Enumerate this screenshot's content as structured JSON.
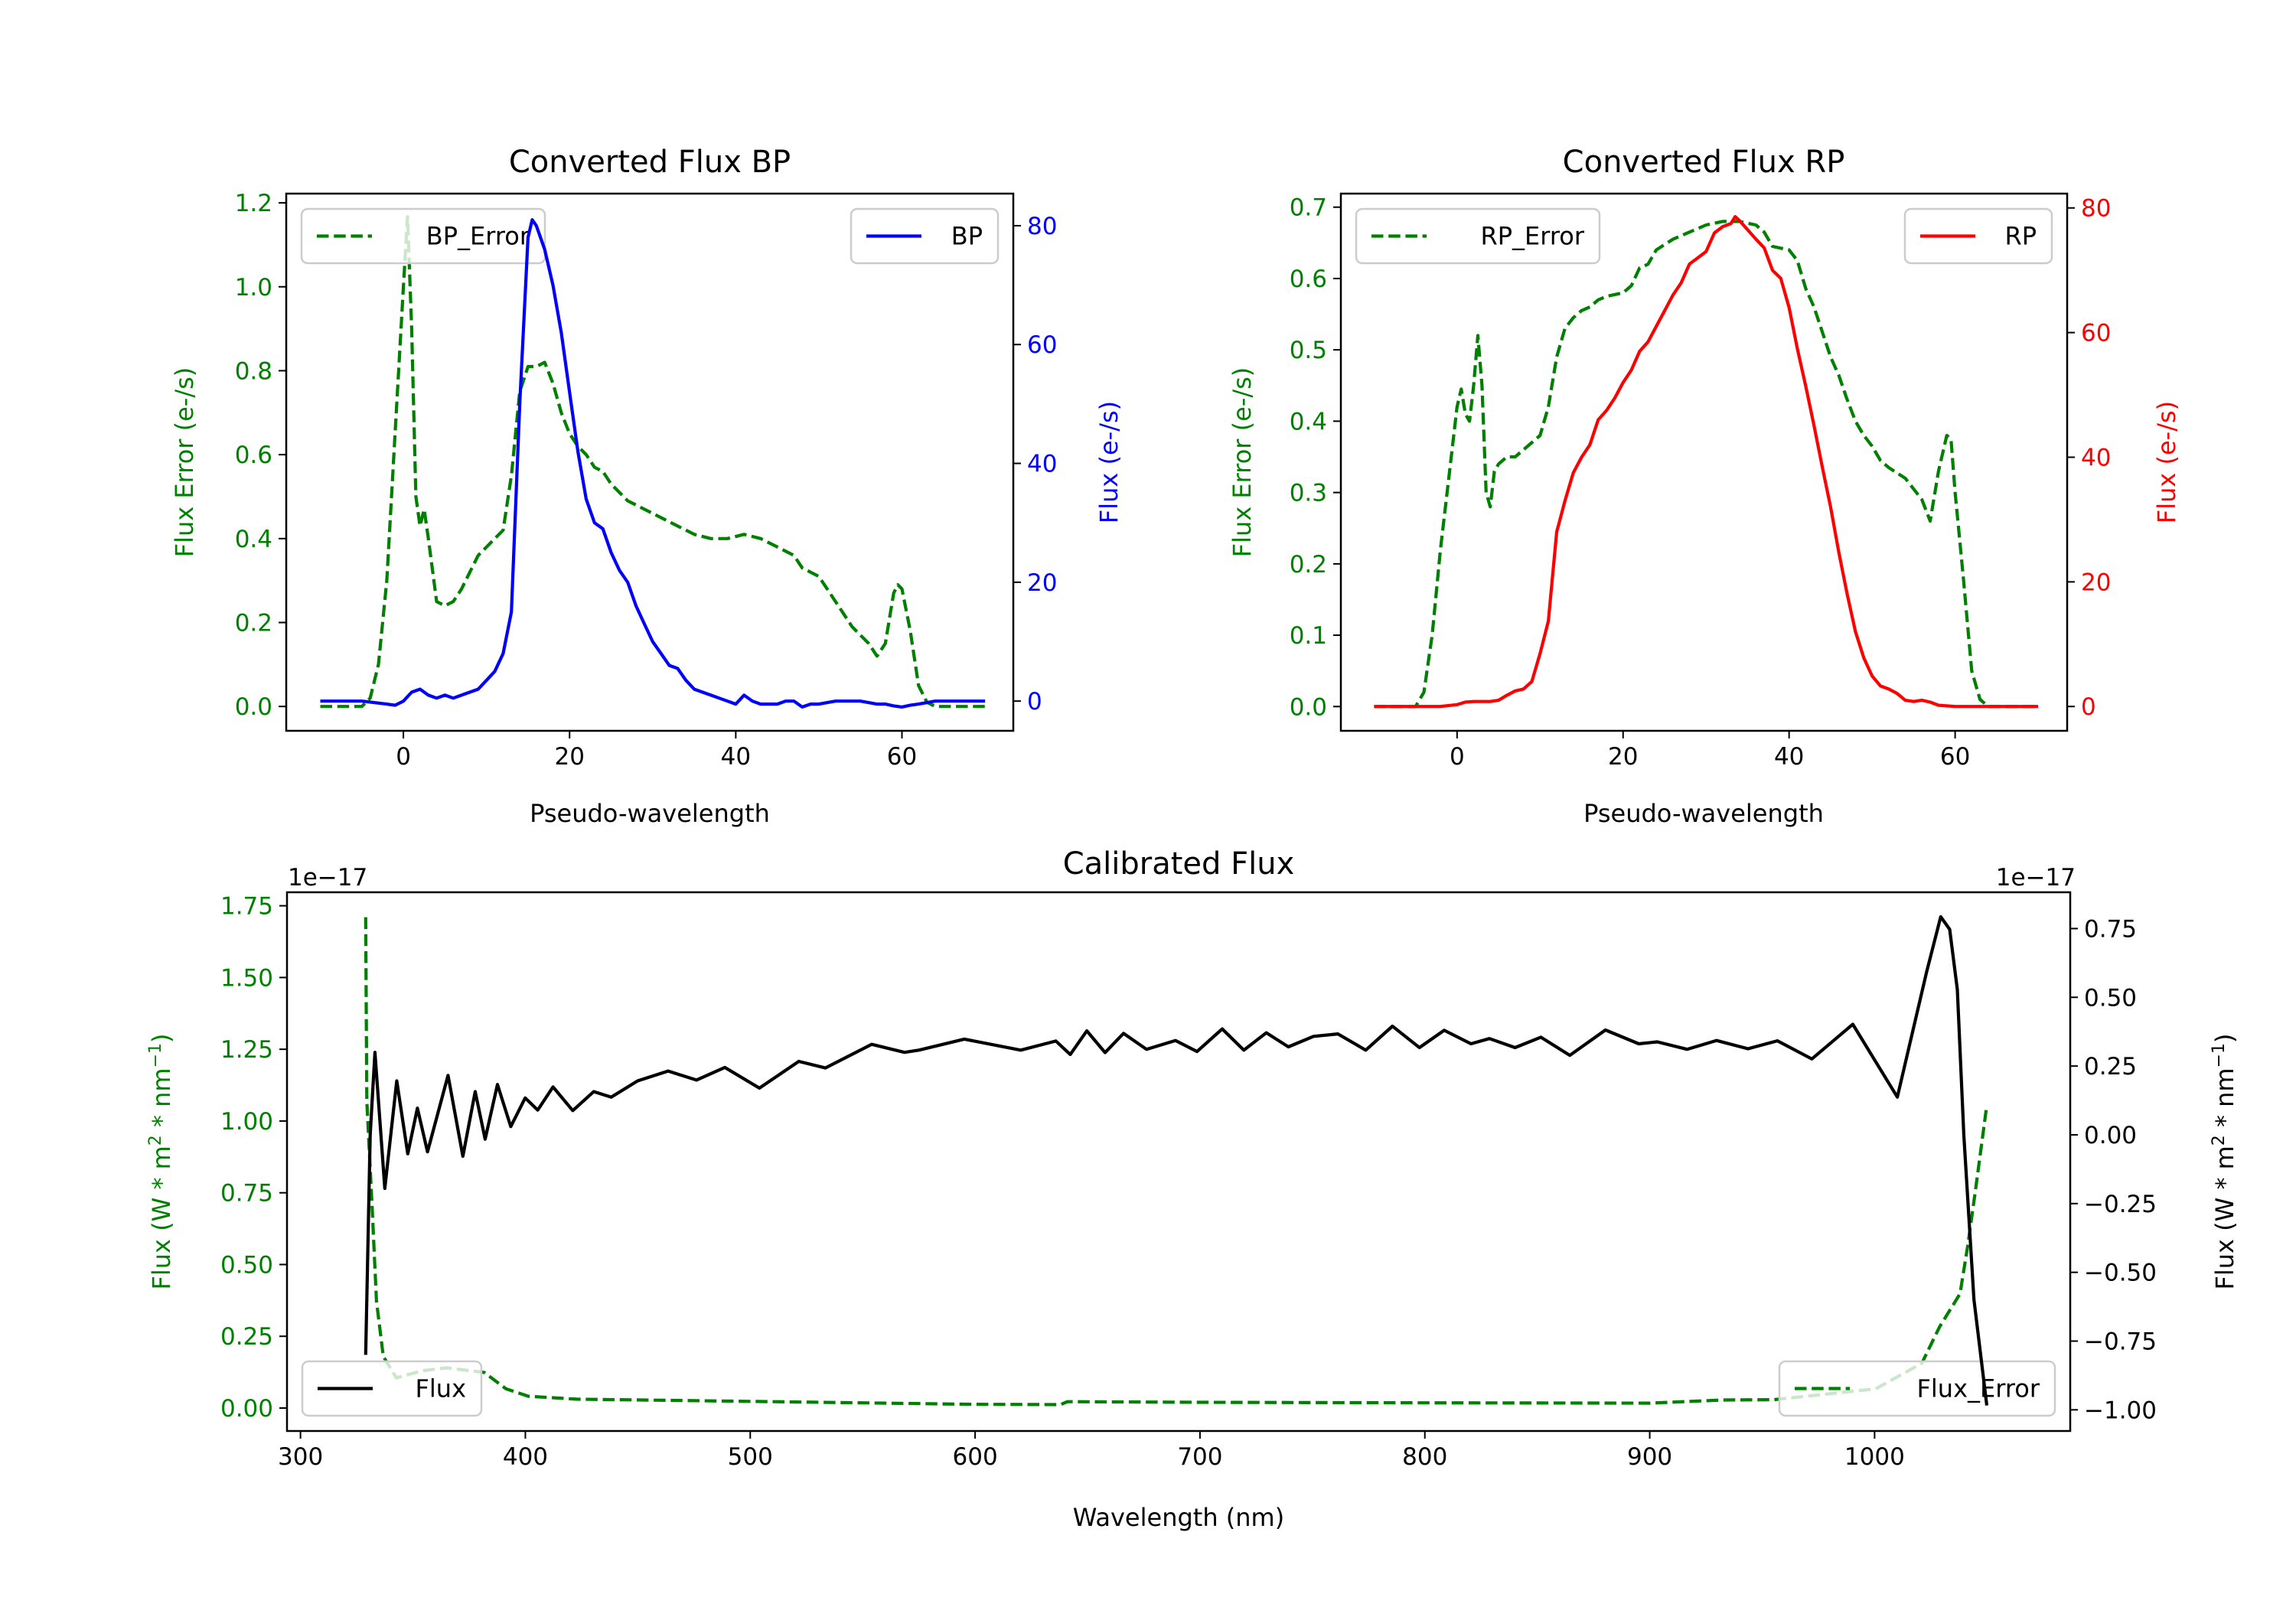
{
  "chart_data": [
    {
      "type": "line",
      "title": "Converted Flux BP",
      "xlabel": "Pseudo-wavelength",
      "ylabel_left": "Flux Error (e-/s)",
      "ylabel_right": "Flux (e-/s)",
      "xlim": [
        -14.1,
        73.4
      ],
      "ylim_left": [
        -0.058,
        1.222
      ],
      "ylim_right": [
        -5.0,
        85.4
      ],
      "xticks": [
        0,
        20,
        40,
        60
      ],
      "xtick_labels": [
        "0",
        "20",
        "40",
        "60"
      ],
      "yticks_left": [
        0.0,
        0.2,
        0.4,
        0.6,
        0.8,
        1.0,
        1.2
      ],
      "ytick_labels_left": [
        "0.0",
        "0.2",
        "0.4",
        "0.6",
        "0.8",
        "1.0",
        "1.2"
      ],
      "yticks_right": [
        0,
        20,
        40,
        60,
        80
      ],
      "ytick_labels_right": [
        "0",
        "20",
        "40",
        "60",
        "80"
      ],
      "left_color": "#008000",
      "right_color": "#0000ff",
      "grid": false,
      "series": [
        {
          "name": "BP_Error",
          "axis": "left",
          "color": "#008000",
          "style": "dashed",
          "legend": "upper-left",
          "x": [
            -10,
            -5,
            -4,
            -3,
            -2,
            -1,
            0,
            0.5,
            1,
            1.5,
            2,
            2.5,
            3,
            4,
            5,
            6,
            7,
            8,
            9,
            10,
            11,
            12,
            13,
            14,
            15,
            16,
            17,
            18,
            19,
            20,
            21,
            22,
            23,
            24,
            25,
            26,
            27,
            28,
            30,
            32,
            34,
            35,
            37,
            39,
            41,
            43,
            45,
            47,
            48,
            49,
            50,
            52,
            54,
            55,
            56,
            57,
            58,
            59,
            59.5,
            60,
            61,
            62,
            63,
            64,
            70
          ],
          "y": [
            0,
            0,
            0.02,
            0.1,
            0.3,
            0.65,
            1.0,
            1.167,
            0.9,
            0.5,
            0.43,
            0.47,
            0.4,
            0.25,
            0.24,
            0.25,
            0.28,
            0.32,
            0.36,
            0.38,
            0.4,
            0.42,
            0.55,
            0.75,
            0.81,
            0.81,
            0.82,
            0.77,
            0.7,
            0.65,
            0.62,
            0.6,
            0.57,
            0.56,
            0.53,
            0.51,
            0.49,
            0.48,
            0.46,
            0.44,
            0.42,
            0.41,
            0.4,
            0.4,
            0.41,
            0.4,
            0.38,
            0.36,
            0.33,
            0.32,
            0.31,
            0.25,
            0.19,
            0.17,
            0.15,
            0.12,
            0.15,
            0.27,
            0.29,
            0.28,
            0.18,
            0.05,
            0.01,
            0,
            0
          ]
        },
        {
          "name": "BP",
          "axis": "right",
          "color": "#0000ff",
          "style": "solid",
          "legend": "upper-right",
          "x": [
            -10,
            -5,
            -2,
            -1,
            0,
            1,
            2,
            3,
            4,
            5,
            6,
            7,
            8,
            9,
            10,
            11,
            12,
            13,
            14,
            15,
            15.5,
            16,
            17,
            18,
            19,
            20,
            21,
            22,
            23,
            24,
            25,
            26,
            27,
            28,
            29,
            30,
            31,
            32,
            33,
            34,
            35,
            36,
            37,
            38,
            39,
            40,
            41,
            42,
            43,
            45,
            46,
            47,
            48,
            49,
            50,
            52,
            55,
            57,
            58,
            59,
            60,
            61,
            62,
            64,
            70
          ],
          "y": [
            0,
            0,
            -0.5,
            -0.7,
            0,
            1.5,
            2,
            1,
            0.5,
            1,
            0.5,
            1,
            1.5,
            2,
            3.5,
            5,
            8,
            15,
            50,
            78,
            81,
            80,
            76,
            70,
            62,
            52,
            42,
            34,
            30,
            29,
            25,
            22,
            20,
            16,
            13,
            10,
            8,
            6,
            5.5,
            3.5,
            2,
            1.5,
            1,
            0.5,
            0,
            -0.5,
            1,
            0,
            -0.5,
            -0.5,
            0,
            0,
            -1,
            -0.5,
            -0.5,
            0,
            0,
            -0.5,
            -0.5,
            -0.8,
            -1,
            -0.7,
            -0.5,
            0,
            0
          ]
        }
      ]
    },
    {
      "type": "line",
      "title": "Converted Flux RP",
      "xlabel": "Pseudo-wavelength",
      "ylabel_left": "Flux Error (e-/s)",
      "ylabel_right": "Flux (e-/s)",
      "xlim": [
        -14.0,
        73.5
      ],
      "ylim_left": [
        -0.034,
        0.719
      ],
      "ylim_right": [
        -3.9,
        82.3
      ],
      "xticks": [
        0,
        20,
        40,
        60
      ],
      "xtick_labels": [
        "0",
        "20",
        "40",
        "60"
      ],
      "yticks_left": [
        0.0,
        0.1,
        0.2,
        0.3,
        0.4,
        0.5,
        0.6,
        0.7
      ],
      "ytick_labels_left": [
        "0.0",
        "0.1",
        "0.2",
        "0.3",
        "0.4",
        "0.5",
        "0.6",
        "0.7"
      ],
      "yticks_right": [
        0,
        20,
        40,
        60,
        80
      ],
      "ytick_labels_right": [
        "0",
        "20",
        "40",
        "60",
        "80"
      ],
      "left_color": "#008000",
      "right_color": "#ff0000",
      "grid": false,
      "series": [
        {
          "name": "RP_Error",
          "axis": "left",
          "color": "#008000",
          "style": "dashed",
          "legend": "upper-left",
          "x": [
            -10,
            -5,
            -4,
            -3,
            -2,
            -1,
            0,
            0.5,
            1,
            1.5,
            2,
            2.5,
            3,
            3.5,
            4,
            4.5,
            5,
            6,
            7,
            8,
            9,
            10,
            11,
            12,
            13,
            14,
            15,
            16,
            17,
            18,
            20,
            21,
            22,
            23,
            24,
            26,
            28,
            30,
            32,
            34,
            36,
            37,
            38,
            40,
            41,
            42,
            43,
            44,
            45,
            46,
            47,
            48,
            49,
            50,
            51,
            52,
            54,
            55,
            56,
            57,
            58,
            59,
            59.5,
            60,
            61,
            62,
            63,
            64,
            70
          ],
          "y": [
            0,
            0,
            0.02,
            0.1,
            0.22,
            0.32,
            0.42,
            0.445,
            0.41,
            0.4,
            0.45,
            0.52,
            0.45,
            0.3,
            0.28,
            0.33,
            0.34,
            0.35,
            0.35,
            0.36,
            0.37,
            0.38,
            0.42,
            0.49,
            0.53,
            0.545,
            0.555,
            0.56,
            0.57,
            0.575,
            0.58,
            0.59,
            0.615,
            0.62,
            0.64,
            0.655,
            0.665,
            0.675,
            0.68,
            0.68,
            0.675,
            0.665,
            0.645,
            0.64,
            0.625,
            0.586,
            0.56,
            0.525,
            0.49,
            0.464,
            0.43,
            0.4,
            0.38,
            0.365,
            0.345,
            0.335,
            0.32,
            0.305,
            0.29,
            0.26,
            0.33,
            0.38,
            0.375,
            0.3,
            0.18,
            0.05,
            0.01,
            0,
            0
          ]
        },
        {
          "name": "RP",
          "axis": "right",
          "color": "#ff0000",
          "style": "solid",
          "legend": "upper-right",
          "x": [
            -10,
            -4,
            -2,
            0,
            1,
            2,
            3,
            4,
            5,
            6,
            7,
            8,
            9,
            10,
            11,
            12,
            13,
            14,
            15,
            16,
            17,
            18,
            19,
            20,
            21,
            22,
            23,
            24,
            25,
            26,
            27,
            28,
            29,
            30,
            31,
            32,
            33,
            33.5,
            34,
            35,
            36,
            37,
            38,
            39,
            40,
            41,
            42,
            43,
            44,
            45,
            46,
            47,
            48,
            49,
            50,
            51,
            52,
            53,
            54,
            55,
            56,
            57,
            58,
            60,
            70
          ],
          "y": [
            0,
            0,
            0,
            0.3,
            0.7,
            0.8,
            0.8,
            0.8,
            1,
            1.8,
            2.5,
            2.8,
            4,
            8.5,
            13.7,
            28,
            33,
            37.5,
            40,
            42,
            46,
            47.5,
            49.5,
            52,
            54,
            57,
            58.5,
            61,
            63.5,
            66,
            68,
            71,
            72,
            73,
            76,
            77,
            77.5,
            78.6,
            78,
            76.5,
            75,
            73.6,
            70,
            68.7,
            64,
            57.4,
            51.4,
            45.1,
            38.4,
            32,
            24.7,
            18,
            12,
            7.8,
            4.9,
            3.3,
            2.8,
            2.1,
            1,
            0.8,
            1,
            0.7,
            0.2,
            0,
            0
          ]
        }
      ]
    },
    {
      "type": "line",
      "title": "Calibrated Flux",
      "xlabel": "Wavelength (nm)",
      "ylabel_left_parts": [
        "Flux (W * m",
        "2",
        " * nm",
        "−1",
        ")"
      ],
      "ylabel_right_parts": [
        "Flux (W * m",
        "2",
        " * nm",
        "−1",
        ")"
      ],
      "offset_left": "1e−17",
      "offset_right": "1e−17",
      "xlim": [
        294,
        1087
      ],
      "ylim_left": [
        -0.08,
        1.797
      ],
      "ylim_right": [
        -1.077,
        0.882
      ],
      "xticks": [
        300,
        400,
        500,
        600,
        700,
        800,
        900,
        1000
      ],
      "xtick_labels": [
        "300",
        "400",
        "500",
        "600",
        "700",
        "800",
        "900",
        "1000"
      ],
      "yticks_left": [
        0.0,
        0.25,
        0.5,
        0.75,
        1.0,
        1.25,
        1.5,
        1.75
      ],
      "ytick_labels_left": [
        "0.00",
        "0.25",
        "0.50",
        "0.75",
        "1.00",
        "1.25",
        "1.50",
        "1.75"
      ],
      "yticks_right": [
        -1.0,
        -0.75,
        -0.5,
        -0.25,
        0.0,
        0.25,
        0.5,
        0.75
      ],
      "ytick_labels_right": [
        "−1.00",
        "−0.75",
        "−0.50",
        "−0.25",
        "0.00",
        "0.25",
        "0.50",
        "0.75"
      ],
      "left_color": "#008000",
      "right_color": "#000000",
      "grid": false,
      "series": [
        {
          "name": "Flux_Error",
          "axis": "left",
          "color": "#008000",
          "style": "dashed",
          "legend": "lower-right",
          "x": [
            329,
            329.5,
            331.9,
            333.8,
            336.8,
            342.6,
            354.3,
            365,
            381.7,
            391.4,
            401.3,
            422.7,
            452,
            510.6,
            598.7,
            638,
            641,
            700,
            800,
            900,
            932.4,
            955.1,
            1000.5,
            1021,
            1028.9,
            1038,
            1041.4,
            1044.8,
            1049.9
          ],
          "y": [
            1.71,
            1.07,
            0.69,
            0.373,
            0.18,
            0.105,
            0.13,
            0.14,
            0.124,
            0.067,
            0.041,
            0.031,
            0.028,
            0.022,
            0.013,
            0.012,
            0.022,
            0.02,
            0.018,
            0.017,
            0.028,
            0.029,
            0.067,
            0.156,
            0.283,
            0.398,
            0.564,
            0.755,
            1.055
          ]
        },
        {
          "name": "Flux",
          "axis": "right",
          "color": "#000000",
          "style": "solid",
          "legend": "lower-left",
          "x": [
            329,
            331,
            333.1,
            337.5,
            342.8,
            347.7,
            352,
            356.5,
            365.6,
            372.2,
            377.7,
            382.1,
            387.6,
            393.5,
            399.9,
            405.5,
            412.3,
            421.1,
            430.4,
            438.2,
            449.9,
            463.5,
            476.1,
            488.7,
            504.1,
            521.6,
            533.4,
            554,
            568.6,
            575,
            595.2,
            620.3,
            635.9,
            642.3,
            649.7,
            657.8,
            666,
            676.2,
            689.1,
            698.7,
            709.9,
            719.5,
            729.5,
            739.3,
            750.5,
            761.3,
            773.7,
            785.6,
            797.6,
            808.6,
            820.5,
            828.7,
            840.1,
            851.6,
            864.5,
            880.3,
            895.1,
            903.4,
            916.6,
            929.7,
            943.7,
            956.8,
            972.1,
            990.3,
            1010.1,
            1023.2,
            1029.4,
            1033.4,
            1036.8,
            1039.7,
            1044.2,
            1049.9
          ],
          "y": [
            -0.8,
            0.0,
            0.3,
            -0.195,
            0.196,
            -0.069,
            0.097,
            -0.062,
            0.216,
            -0.078,
            0.157,
            -0.016,
            0.183,
            0.03,
            0.134,
            0.09,
            0.174,
            0.088,
            0.157,
            0.137,
            0.196,
            0.232,
            0.199,
            0.245,
            0.17,
            0.267,
            0.243,
            0.329,
            0.3,
            0.308,
            0.348,
            0.308,
            0.341,
            0.292,
            0.378,
            0.299,
            0.369,
            0.311,
            0.343,
            0.303,
            0.385,
            0.308,
            0.371,
            0.32,
            0.358,
            0.367,
            0.308,
            0.395,
            0.317,
            0.38,
            0.331,
            0.35,
            0.317,
            0.355,
            0.289,
            0.381,
            0.331,
            0.338,
            0.311,
            0.343,
            0.313,
            0.342,
            0.276,
            0.402,
            0.137,
            0.594,
            0.793,
            0.747,
            0.528,
            -0.002,
            -0.599,
            -0.984
          ]
        }
      ]
    }
  ]
}
